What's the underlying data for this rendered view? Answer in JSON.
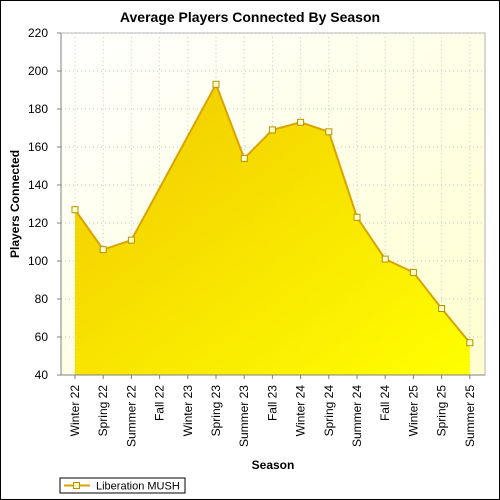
{
  "chart_data": {
    "type": "area",
    "title": "Average Players Connected By Season",
    "xlabel": "Season",
    "ylabel": "Players Connected",
    "ylim": [
      40,
      220
    ],
    "yticks": [
      40,
      60,
      80,
      100,
      120,
      140,
      160,
      180,
      200,
      220
    ],
    "categories": [
      "Winter 22",
      "Spring 22",
      "Summer 22",
      "Fall 22",
      "Winter 23",
      "Spring 23",
      "Summer 23",
      "Fall 23",
      "Winter 24",
      "Spring 24",
      "Summer 24",
      "Fall 24",
      "Winter 25",
      "Spring 25",
      "Summer 25"
    ],
    "series": [
      {
        "name": "Liberation MUSH",
        "values": [
          127,
          106,
          111,
          null,
          null,
          193,
          154,
          169,
          173,
          168,
          123,
          101,
          94,
          75,
          57
        ],
        "color": "#e6b800"
      }
    ],
    "grid": true,
    "legend": "bottom-left",
    "colors": {
      "fill_top": "#f2cc00",
      "fill_bottom": "#ffff00",
      "plot_bg_top": "#ffffe6",
      "plot_bg_bottom": "#ffffff",
      "line": "#d9a300"
    }
  }
}
